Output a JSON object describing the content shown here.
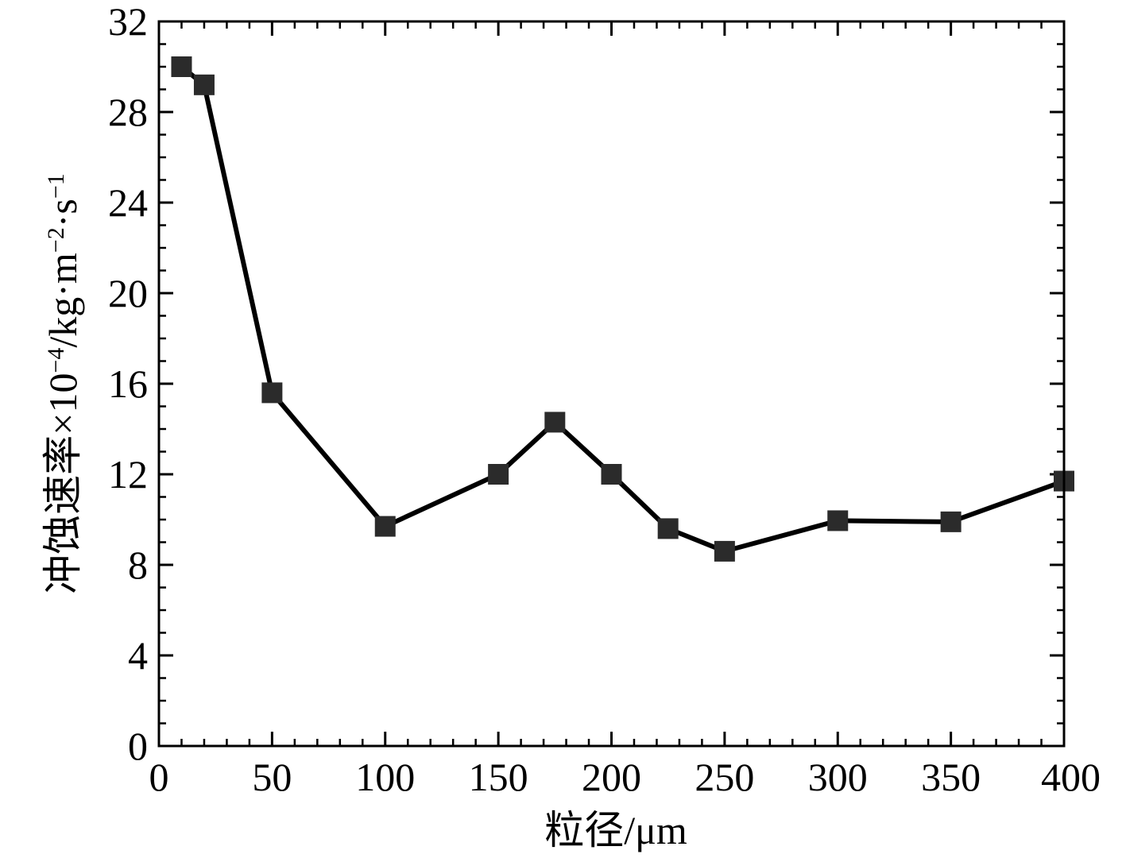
{
  "chart_data": {
    "type": "line",
    "title": "",
    "xlabel": "粒径/μm",
    "ylabel_main": "冲蚀速率×10",
    "ylabel_exp1": "−4",
    "ylabel_mid": "/kg·m",
    "ylabel_exp2": "−2",
    "ylabel_mid2": "·s",
    "ylabel_exp3": "−1",
    "xlim": [
      0,
      400
    ],
    "ylim": [
      0,
      32
    ],
    "x_ticks": [
      "0",
      "50",
      "100",
      "150",
      "200",
      "250",
      "300",
      "350",
      "400"
    ],
    "y_ticks": [
      "0",
      "4",
      "8",
      "12",
      "16",
      "20",
      "24",
      "28",
      "32"
    ],
    "grid": false,
    "legend": "none",
    "series": [
      {
        "x": [
          10,
          20,
          50,
          100,
          150,
          175,
          200,
          225,
          250,
          300,
          350,
          400
        ],
        "y": [
          30.0,
          29.2,
          15.6,
          9.7,
          12.0,
          14.3,
          12.0,
          9.6,
          8.6,
          9.95,
          9.9,
          11.7
        ],
        "color": "#000000",
        "marker": "square",
        "marker_color": "#2b2b2b"
      }
    ]
  }
}
